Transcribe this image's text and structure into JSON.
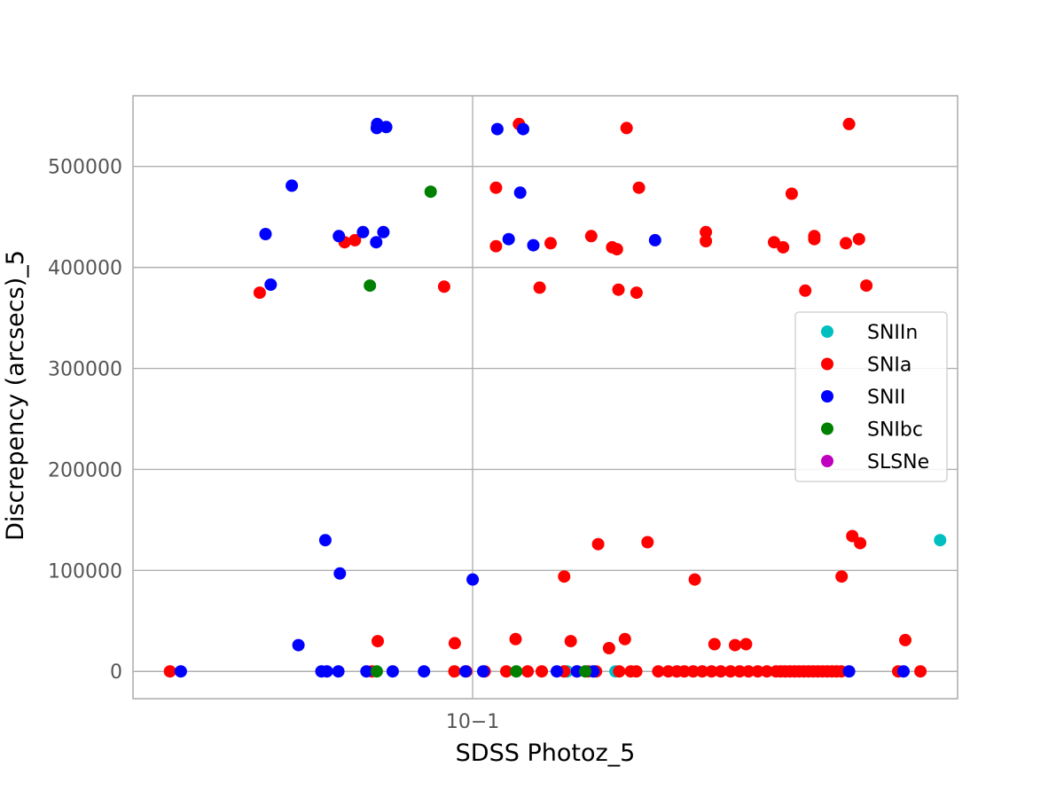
{
  "chart_data": {
    "type": "scatter",
    "xlabel": "SDSS Photoz_5",
    "ylabel": "Discrepency (arcsecs)_5",
    "xscale": "log",
    "xlim": [
      0.04,
      0.37
    ],
    "ylim": [
      -27000,
      570000
    ],
    "x_ticks": [
      {
        "value": 0.1,
        "label": "10−1"
      }
    ],
    "y_ticks": [
      {
        "value": 0,
        "label": "0"
      },
      {
        "value": 100000,
        "label": "100000"
      },
      {
        "value": 200000,
        "label": "200000"
      },
      {
        "value": 300000,
        "label": "300000"
      },
      {
        "value": 400000,
        "label": "400000"
      },
      {
        "value": 500000,
        "label": "500000"
      }
    ],
    "grid": true,
    "legend_position": "center-right",
    "series": [
      {
        "name": "SNIIn",
        "color": "#00bfbf",
        "points": [
          [
            0.147,
            0
          ],
          [
            0.353,
            130000
          ],
          [
            0.129,
            0
          ]
        ]
      },
      {
        "name": "SNIa",
        "color": "#ff0000",
        "points": [
          [
            0.0563,
            375000
          ],
          [
            0.0708,
            425000
          ],
          [
            0.0728,
            427000
          ],
          [
            0.0926,
            381000
          ],
          [
            0.1065,
            421000
          ],
          [
            0.1065,
            479000
          ],
          [
            0.1133,
            542000
          ],
          [
            0.1198,
            380000
          ],
          [
            0.1234,
            424000
          ],
          [
            0.1377,
            431000
          ],
          [
            0.1457,
            420000
          ],
          [
            0.1476,
            418000
          ],
          [
            0.1482,
            378000
          ],
          [
            0.1515,
            538000
          ],
          [
            0.1556,
            375000
          ],
          [
            0.1566,
            479000
          ],
          [
            0.1876,
            435000
          ],
          [
            0.1876,
            426000
          ],
          [
            0.2255,
            425000
          ],
          [
            0.2311,
            420000
          ],
          [
            0.2365,
            473000
          ],
          [
            0.2453,
            377000
          ],
          [
            0.2514,
            431000
          ],
          [
            0.2514,
            428000
          ],
          [
            0.2737,
            424000
          ],
          [
            0.2761,
            542000
          ],
          [
            0.2836,
            428000
          ],
          [
            0.2893,
            382000
          ],
          [
            0.128,
            94000
          ],
          [
            0.1403,
            126000
          ],
          [
            0.1603,
            128000
          ],
          [
            0.1821,
            91000
          ],
          [
            0.2706,
            94000
          ],
          [
            0.2785,
            134000
          ],
          [
            0.2845,
            127000
          ],
          [
            0.0774,
            30000
          ],
          [
            0.0953,
            28000
          ],
          [
            0.1123,
            32000
          ],
          [
            0.1303,
            30000
          ],
          [
            0.1445,
            23000
          ],
          [
            0.1508,
            32000
          ],
          [
            0.192,
            27000
          ],
          [
            0.203,
            26000
          ],
          [
            0.2091,
            27000
          ],
          [
            0.3213,
            31000
          ],
          [
            0.0442,
            0
          ],
          [
            0.0762,
            0
          ],
          [
            0.0952,
            0
          ],
          [
            0.0983,
            0
          ],
          [
            0.1033,
            0
          ],
          [
            0.1095,
            0
          ],
          [
            0.116,
            0
          ],
          [
            0.1205,
            0
          ],
          [
            0.128,
            0
          ],
          [
            0.1325,
            0
          ],
          [
            0.1365,
            0
          ],
          [
            0.1395,
            0
          ],
          [
            0.1485,
            0
          ],
          [
            0.1532,
            0
          ],
          [
            0.1555,
            0
          ],
          [
            0.165,
            0
          ],
          [
            0.1695,
            0
          ],
          [
            0.1735,
            0
          ],
          [
            0.177,
            0
          ],
          [
            0.1813,
            0
          ],
          [
            0.1858,
            0
          ],
          [
            0.1905,
            0
          ],
          [
            0.1953,
            0
          ],
          [
            0.2005,
            0
          ],
          [
            0.2055,
            0
          ],
          [
            0.2105,
            0
          ],
          [
            0.2158,
            0
          ],
          [
            0.2212,
            0
          ],
          [
            0.2267,
            0
          ],
          [
            0.2295,
            0
          ],
          [
            0.2324,
            0
          ],
          [
            0.2353,
            0
          ],
          [
            0.2383,
            0
          ],
          [
            0.2413,
            0
          ],
          [
            0.2444,
            0
          ],
          [
            0.2475,
            0
          ],
          [
            0.2506,
            0
          ],
          [
            0.2538,
            0
          ],
          [
            0.257,
            0
          ],
          [
            0.2603,
            0
          ],
          [
            0.2636,
            0
          ],
          [
            0.2669,
            0
          ],
          [
            0.2703,
            0
          ],
          [
            0.3152,
            0
          ],
          [
            0.3347,
            0
          ]
        ]
      },
      {
        "name": "SNII",
        "color": "#0000ff",
        "points": [
          [
            0.0572,
            433000
          ],
          [
            0.058,
            383000
          ],
          [
            0.0614,
            481000
          ],
          [
            0.0697,
            431000
          ],
          [
            0.0744,
            435000
          ],
          [
            0.0771,
            425000
          ],
          [
            0.0786,
            435000
          ],
          [
            0.0772,
            538000
          ],
          [
            0.0773,
            542000
          ],
          [
            0.0792,
            539000
          ],
          [
            0.1069,
            537000
          ],
          [
            0.1102,
            428000
          ],
          [
            0.1137,
            474000
          ],
          [
            0.1146,
            537000
          ],
          [
            0.1178,
            422000
          ],
          [
            0.1636,
            427000
          ],
          [
            0.0672,
            130000
          ],
          [
            0.0699,
            97000
          ],
          [
            0.0625,
            26000
          ],
          [
            0.1,
            91000
          ],
          [
            0.0455,
            0
          ],
          [
            0.0665,
            0
          ],
          [
            0.0675,
            0
          ],
          [
            0.0696,
            0
          ],
          [
            0.0751,
            0
          ],
          [
            0.0806,
            0
          ],
          [
            0.0877,
            0
          ],
          [
            0.0981,
            0
          ],
          [
            0.1029,
            0
          ],
          [
            0.1255,
            0
          ],
          [
            0.1325,
            0
          ],
          [
            0.1385,
            0
          ],
          [
            0.2761,
            0
          ],
          [
            0.3198,
            0
          ]
        ]
      },
      {
        "name": "SNIbc",
        "color": "#008000",
        "points": [
          [
            0.0893,
            475000
          ],
          [
            0.0758,
            382000
          ],
          [
            0.0772,
            0
          ],
          [
            0.1125,
            0
          ],
          [
            0.1355,
            0
          ]
        ]
      },
      {
        "name": "SLSNe",
        "color": "#bf00bf",
        "points": []
      }
    ]
  }
}
